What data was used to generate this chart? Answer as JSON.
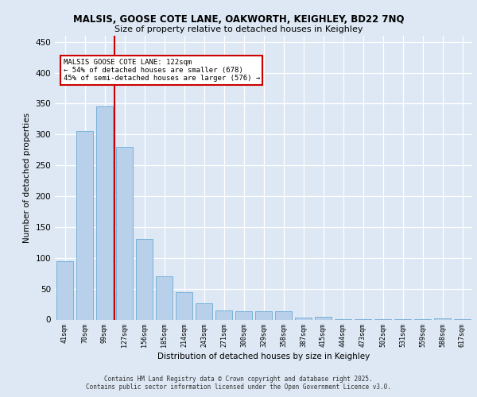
{
  "title1": "MALSIS, GOOSE COTE LANE, OAKWORTH, KEIGHLEY, BD22 7NQ",
  "title2": "Size of property relative to detached houses in Keighley",
  "xlabel": "Distribution of detached houses by size in Keighley",
  "ylabel": "Number of detached properties",
  "categories": [
    "41sqm",
    "70sqm",
    "99sqm",
    "127sqm",
    "156sqm",
    "185sqm",
    "214sqm",
    "243sqm",
    "271sqm",
    "300sqm",
    "329sqm",
    "358sqm",
    "387sqm",
    "415sqm",
    "444sqm",
    "473sqm",
    "502sqm",
    "531sqm",
    "559sqm",
    "588sqm",
    "617sqm"
  ],
  "values": [
    95,
    305,
    345,
    280,
    130,
    70,
    45,
    27,
    15,
    13,
    13,
    14,
    3,
    4,
    1,
    1,
    1,
    1,
    1,
    2,
    1
  ],
  "bar_color": "#b8d0ea",
  "bar_edge_color": "#6aaad4",
  "vline_x": 2.5,
  "vline_color": "#cc0000",
  "annotation_text": "MALSIS GOOSE COTE LANE: 122sqm\n← 54% of detached houses are smaller (678)\n45% of semi-detached houses are larger (576) →",
  "annotation_box_color": "#ffffff",
  "annotation_box_edge": "#cc0000",
  "ylim": [
    0,
    460
  ],
  "yticks": [
    0,
    50,
    100,
    150,
    200,
    250,
    300,
    350,
    400,
    450
  ],
  "footer1": "Contains HM Land Registry data © Crown copyright and database right 2025.",
  "footer2": "Contains public sector information licensed under the Open Government Licence v3.0.",
  "bg_color": "#dde8f4",
  "plot_bg_color": "#dde8f4"
}
